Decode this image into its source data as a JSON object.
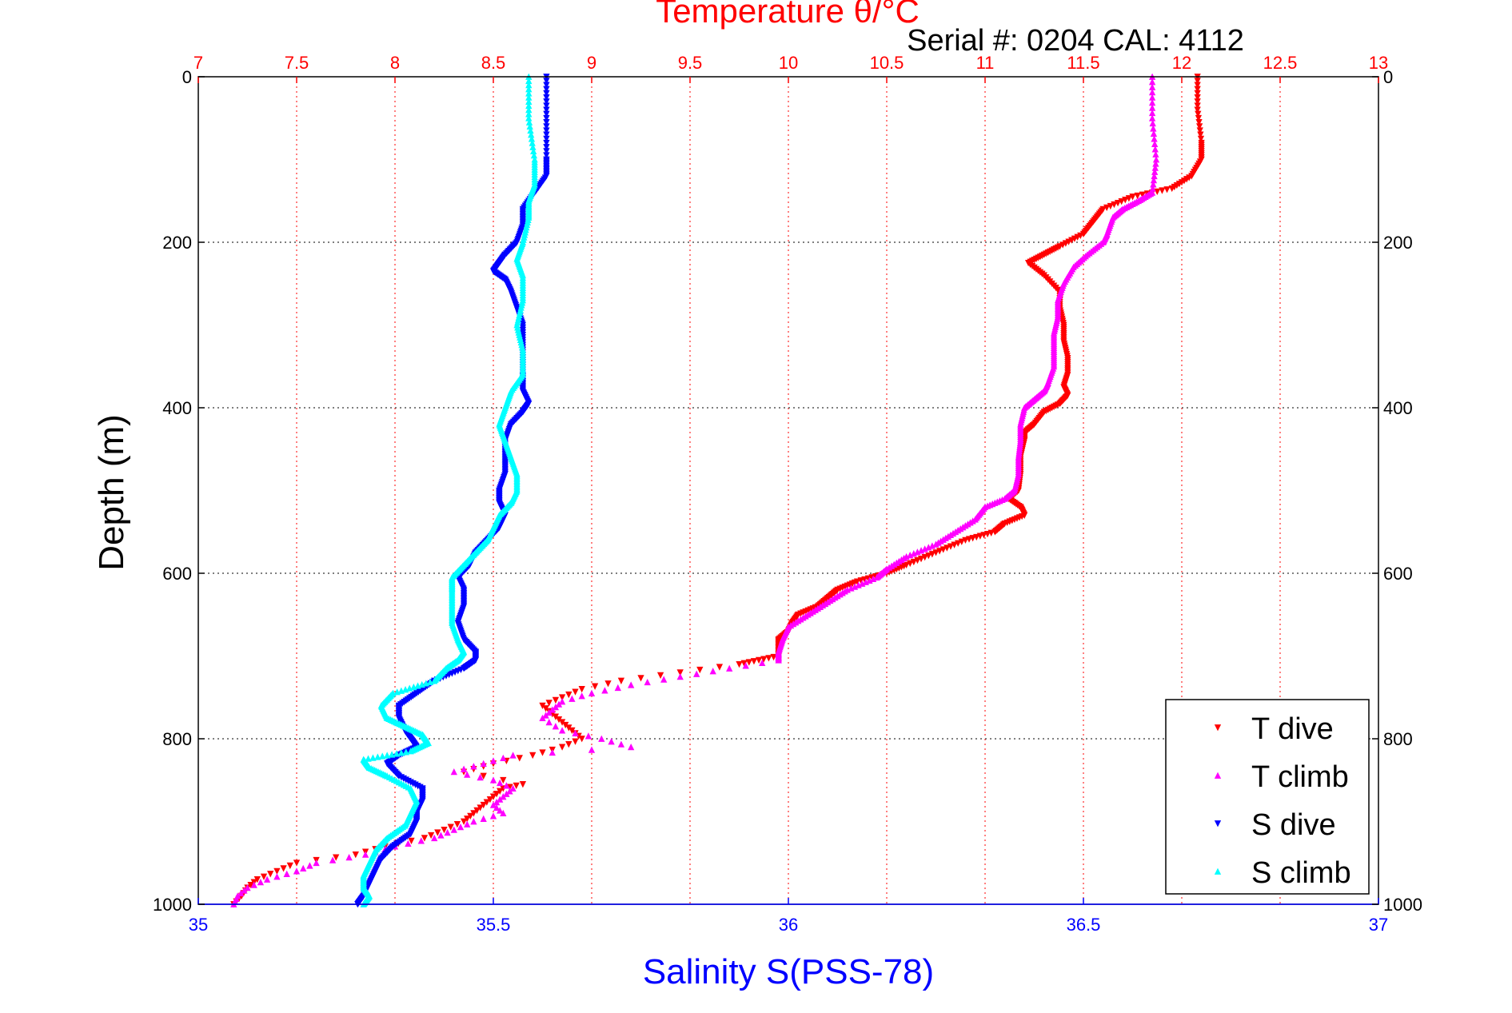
{
  "header": {
    "serial_text": "Serial #: 0204  CAL: 4112"
  },
  "chart_data": {
    "type": "scatter",
    "title": "Temperature θ/°C",
    "xlabel": "Salinity S(PSS-78)",
    "ylabel": "Depth (m)",
    "temperature_axis": {
      "label": "Temperature θ/°C",
      "range": [
        7,
        13
      ],
      "ticks": [
        "7",
        "7.5",
        "8",
        "8.5",
        "9",
        "9.5",
        "10",
        "10.5",
        "11",
        "11.5",
        "12",
        "12.5",
        "13"
      ],
      "color": "#ff0000"
    },
    "salinity_axis": {
      "label": "Salinity S(PSS-78)",
      "range": [
        35,
        37
      ],
      "ticks": [
        "35",
        "35.5",
        "36",
        "36.5",
        "37"
      ],
      "color": "#0000ff"
    },
    "depth_axis": {
      "label": "Depth (m)",
      "range": [
        0,
        1000
      ],
      "reversed": true,
      "ticks": [
        "0",
        "200",
        "400",
        "600",
        "800",
        "1000"
      ]
    },
    "grid": true,
    "legend_position": "bottom-right",
    "series": [
      {
        "name": "T dive",
        "axis": "temperature",
        "color": "#ff0000",
        "marker": "triangle-down",
        "points": [
          [
            0,
            12.08
          ],
          [
            40,
            12.08
          ],
          [
            80,
            12.1
          ],
          [
            100,
            12.1
          ],
          [
            120,
            12.05
          ],
          [
            135,
            11.95
          ],
          [
            145,
            11.75
          ],
          [
            160,
            11.6
          ],
          [
            175,
            11.55
          ],
          [
            190,
            11.5
          ],
          [
            205,
            11.38
          ],
          [
            215,
            11.3
          ],
          [
            225,
            11.22
          ],
          [
            240,
            11.3
          ],
          [
            260,
            11.38
          ],
          [
            280,
            11.38
          ],
          [
            300,
            11.4
          ],
          [
            320,
            11.4
          ],
          [
            340,
            11.42
          ],
          [
            360,
            11.42
          ],
          [
            375,
            11.4
          ],
          [
            385,
            11.42
          ],
          [
            395,
            11.38
          ],
          [
            405,
            11.3
          ],
          [
            420,
            11.25
          ],
          [
            430,
            11.2
          ],
          [
            440,
            11.2
          ],
          [
            460,
            11.18
          ],
          [
            480,
            11.18
          ],
          [
            500,
            11.17
          ],
          [
            510,
            11.12
          ],
          [
            520,
            11.18
          ],
          [
            530,
            11.2
          ],
          [
            540,
            11.1
          ],
          [
            550,
            11.05
          ],
          [
            560,
            10.9
          ],
          [
            575,
            10.75
          ],
          [
            590,
            10.6
          ],
          [
            600,
            10.5
          ],
          [
            610,
            10.35
          ],
          [
            620,
            10.25
          ],
          [
            630,
            10.2
          ],
          [
            640,
            10.15
          ],
          [
            650,
            10.05
          ],
          [
            660,
            10.02
          ],
          [
            670,
            10.0
          ],
          [
            680,
            9.95
          ],
          [
            690,
            9.95
          ],
          [
            700,
            9.95
          ],
          [
            710,
            9.75
          ],
          [
            720,
            9.45
          ],
          [
            730,
            9.15
          ],
          [
            740,
            8.95
          ],
          [
            750,
            8.85
          ],
          [
            760,
            8.75
          ],
          [
            770,
            8.8
          ],
          [
            780,
            8.85
          ],
          [
            790,
            8.9
          ],
          [
            800,
            8.95
          ],
          [
            810,
            8.85
          ],
          [
            820,
            8.7
          ],
          [
            830,
            8.5
          ],
          [
            840,
            8.35
          ],
          [
            855,
            8.65
          ],
          [
            860,
            8.55
          ],
          [
            870,
            8.5
          ],
          [
            880,
            8.45
          ],
          [
            890,
            8.4
          ],
          [
            900,
            8.35
          ],
          [
            910,
            8.25
          ],
          [
            920,
            8.15
          ],
          [
            930,
            7.95
          ],
          [
            940,
            7.8
          ],
          [
            950,
            7.5
          ],
          [
            960,
            7.4
          ],
          [
            970,
            7.3
          ],
          [
            980,
            7.25
          ],
          [
            990,
            7.22
          ],
          [
            1000,
            7.18
          ]
        ]
      },
      {
        "name": "T climb",
        "axis": "temperature",
        "color": "#ff00ff",
        "marker": "triangle-up",
        "points": [
          [
            0,
            11.85
          ],
          [
            50,
            11.85
          ],
          [
            100,
            11.87
          ],
          [
            140,
            11.85
          ],
          [
            150,
            11.78
          ],
          [
            160,
            11.7
          ],
          [
            170,
            11.65
          ],
          [
            190,
            11.62
          ],
          [
            200,
            11.6
          ],
          [
            215,
            11.52
          ],
          [
            230,
            11.45
          ],
          [
            250,
            11.4
          ],
          [
            270,
            11.37
          ],
          [
            290,
            11.37
          ],
          [
            310,
            11.35
          ],
          [
            330,
            11.35
          ],
          [
            350,
            11.35
          ],
          [
            370,
            11.32
          ],
          [
            380,
            11.3
          ],
          [
            390,
            11.25
          ],
          [
            400,
            11.2
          ],
          [
            420,
            11.18
          ],
          [
            440,
            11.18
          ],
          [
            460,
            11.17
          ],
          [
            480,
            11.17
          ],
          [
            500,
            11.15
          ],
          [
            510,
            11.1
          ],
          [
            520,
            11.0
          ],
          [
            535,
            10.95
          ],
          [
            550,
            10.85
          ],
          [
            565,
            10.75
          ],
          [
            580,
            10.6
          ],
          [
            595,
            10.5
          ],
          [
            605,
            10.45
          ],
          [
            620,
            10.3
          ],
          [
            635,
            10.2
          ],
          [
            650,
            10.1
          ],
          [
            665,
            10.0
          ],
          [
            680,
            9.97
          ],
          [
            695,
            9.95
          ],
          [
            705,
            9.95
          ],
          [
            715,
            9.7
          ],
          [
            725,
            9.45
          ],
          [
            735,
            9.2
          ],
          [
            745,
            9.0
          ],
          [
            755,
            8.85
          ],
          [
            765,
            8.8
          ],
          [
            775,
            8.75
          ],
          [
            790,
            8.85
          ],
          [
            800,
            9.05
          ],
          [
            810,
            9.2
          ],
          [
            820,
            8.6
          ],
          [
            830,
            8.45
          ],
          [
            840,
            8.3
          ],
          [
            850,
            8.5
          ],
          [
            860,
            8.6
          ],
          [
            870,
            8.55
          ],
          [
            880,
            8.5
          ],
          [
            890,
            8.55
          ],
          [
            900,
            8.4
          ],
          [
            910,
            8.3
          ],
          [
            920,
            8.2
          ],
          [
            930,
            8.0
          ],
          [
            940,
            7.85
          ],
          [
            950,
            7.6
          ],
          [
            960,
            7.5
          ],
          [
            970,
            7.35
          ],
          [
            980,
            7.25
          ],
          [
            990,
            7.2
          ],
          [
            1000,
            7.18
          ]
        ]
      },
      {
        "name": "S dive",
        "axis": "salinity",
        "color": "#0000ff",
        "marker": "triangle-down",
        "points": [
          [
            0,
            35.59
          ],
          [
            50,
            35.59
          ],
          [
            100,
            35.59
          ],
          [
            120,
            35.59
          ],
          [
            140,
            35.57
          ],
          [
            160,
            35.55
          ],
          [
            180,
            35.55
          ],
          [
            200,
            35.54
          ],
          [
            215,
            35.52
          ],
          [
            225,
            35.51
          ],
          [
            235,
            35.5
          ],
          [
            245,
            35.52
          ],
          [
            260,
            35.53
          ],
          [
            280,
            35.54
          ],
          [
            300,
            35.55
          ],
          [
            330,
            35.55
          ],
          [
            360,
            35.55
          ],
          [
            380,
            35.55
          ],
          [
            395,
            35.56
          ],
          [
            405,
            35.55
          ],
          [
            420,
            35.53
          ],
          [
            440,
            35.52
          ],
          [
            460,
            35.52
          ],
          [
            480,
            35.52
          ],
          [
            500,
            35.51
          ],
          [
            515,
            35.51
          ],
          [
            530,
            35.52
          ],
          [
            545,
            35.51
          ],
          [
            560,
            35.49
          ],
          [
            575,
            35.47
          ],
          [
            590,
            35.46
          ],
          [
            605,
            35.44
          ],
          [
            620,
            35.45
          ],
          [
            640,
            35.45
          ],
          [
            660,
            35.44
          ],
          [
            680,
            35.45
          ],
          [
            695,
            35.47
          ],
          [
            705,
            35.47
          ],
          [
            715,
            35.45
          ],
          [
            730,
            35.4
          ],
          [
            745,
            35.37
          ],
          [
            760,
            35.34
          ],
          [
            775,
            35.34
          ],
          [
            790,
            35.35
          ],
          [
            800,
            35.36
          ],
          [
            810,
            35.37
          ],
          [
            820,
            35.34
          ],
          [
            830,
            35.32
          ],
          [
            845,
            35.34
          ],
          [
            860,
            35.38
          ],
          [
            875,
            35.38
          ],
          [
            890,
            35.37
          ],
          [
            900,
            35.37
          ],
          [
            915,
            35.36
          ],
          [
            930,
            35.33
          ],
          [
            945,
            35.31
          ],
          [
            960,
            35.3
          ],
          [
            975,
            35.29
          ],
          [
            990,
            35.28
          ],
          [
            1000,
            35.27
          ]
        ]
      },
      {
        "name": "S climb",
        "axis": "salinity",
        "color": "#00ffff",
        "marker": "triangle-up",
        "points": [
          [
            0,
            35.56
          ],
          [
            50,
            35.56
          ],
          [
            100,
            35.57
          ],
          [
            130,
            35.57
          ],
          [
            150,
            35.56
          ],
          [
            170,
            35.56
          ],
          [
            200,
            35.55
          ],
          [
            220,
            35.54
          ],
          [
            240,
            35.55
          ],
          [
            270,
            35.55
          ],
          [
            300,
            35.54
          ],
          [
            330,
            35.55
          ],
          [
            360,
            35.55
          ],
          [
            380,
            35.53
          ],
          [
            400,
            35.52
          ],
          [
            420,
            35.51
          ],
          [
            440,
            35.52
          ],
          [
            460,
            35.53
          ],
          [
            480,
            35.54
          ],
          [
            500,
            35.54
          ],
          [
            515,
            35.53
          ],
          [
            530,
            35.51
          ],
          [
            545,
            35.5
          ],
          [
            560,
            35.49
          ],
          [
            575,
            35.47
          ],
          [
            590,
            35.45
          ],
          [
            605,
            35.43
          ],
          [
            620,
            35.43
          ],
          [
            640,
            35.43
          ],
          [
            660,
            35.43
          ],
          [
            680,
            35.44
          ],
          [
            695,
            35.45
          ],
          [
            705,
            35.44
          ],
          [
            715,
            35.42
          ],
          [
            730,
            35.4
          ],
          [
            745,
            35.33
          ],
          [
            760,
            35.31
          ],
          [
            775,
            35.32
          ],
          [
            785,
            35.35
          ],
          [
            795,
            35.38
          ],
          [
            805,
            35.39
          ],
          [
            815,
            35.36
          ],
          [
            825,
            35.28
          ],
          [
            835,
            35.29
          ],
          [
            845,
            35.32
          ],
          [
            860,
            35.36
          ],
          [
            875,
            35.37
          ],
          [
            890,
            35.36
          ],
          [
            905,
            35.35
          ],
          [
            920,
            35.32
          ],
          [
            935,
            35.3
          ],
          [
            950,
            35.29
          ],
          [
            965,
            35.28
          ],
          [
            980,
            35.28
          ],
          [
            990,
            35.29
          ],
          [
            1000,
            35.28
          ]
        ]
      }
    ]
  }
}
